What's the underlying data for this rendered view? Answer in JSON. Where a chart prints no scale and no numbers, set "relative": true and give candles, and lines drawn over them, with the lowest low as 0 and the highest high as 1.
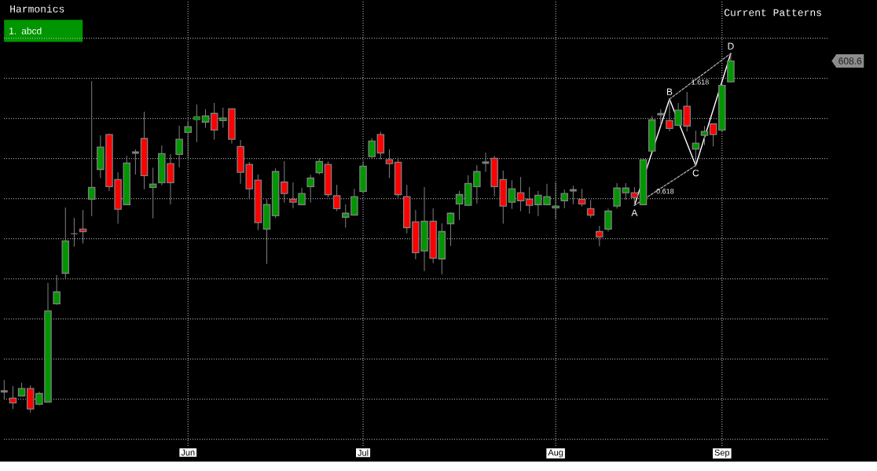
{
  "chart_data": {
    "type": "candlestick",
    "title": "Harmonics",
    "relative": true,
    "grid": true,
    "categories": [
      null,
      null,
      null,
      null,
      null,
      null,
      null,
      null,
      null,
      null,
      null,
      null,
      null,
      null,
      null,
      null,
      null,
      null,
      null,
      null,
      null,
      "Jun",
      null,
      null,
      null,
      null,
      null,
      null,
      null,
      null,
      null,
      null,
      null,
      null,
      null,
      null,
      null,
      null,
      null,
      null,
      null,
      "Jul",
      null,
      null,
      null,
      null,
      null,
      null,
      null,
      null,
      null,
      null,
      null,
      null,
      null,
      null,
      null,
      null,
      null,
      null,
      null,
      null,
      null,
      "Aug",
      null,
      null,
      null,
      null,
      null,
      null,
      null,
      null,
      null,
      null,
      null,
      null,
      null,
      null,
      null,
      null,
      null,
      null,
      "Sep",
      null
    ],
    "ohlc": [
      [
        0.059,
        0.091,
        0.037,
        0.059
      ],
      [
        0.04,
        0.074,
        0.01,
        0.027
      ],
      [
        0.046,
        0.083,
        0.046,
        0.067
      ],
      [
        0.067,
        0.076,
        0,
        0.01
      ],
      [
        0.023,
        0.058,
        0.02,
        0.053
      ],
      [
        0.029,
        0.361,
        0.029,
        0.283
      ],
      [
        0.303,
        0.383,
        0.3,
        0.336
      ],
      [
        0.388,
        0.571,
        0.372,
        0.478
      ],
      [
        0.5,
        0.542,
        0.462,
        0.496
      ],
      [
        0.511,
        0.564,
        0.471,
        0.504
      ],
      [
        0.594,
        0.923,
        0.547,
        0.627
      ],
      [
        0.677,
        0.772,
        0.653,
        0.739
      ],
      [
        0.774,
        0.777,
        0.617,
        0.629
      ],
      [
        0.649,
        0.669,
        0.526,
        0.566
      ],
      [
        0.579,
        0.715,
        0.579,
        0.695
      ],
      [
        0.724,
        0.733,
        0.663,
        0.724
      ],
      [
        0.763,
        0.838,
        0.622,
        0.66
      ],
      [
        0.627,
        0.682,
        0.541,
        0.636
      ],
      [
        0.64,
        0.744,
        0.633,
        0.721
      ],
      [
        0.693,
        0.72,
        0.58,
        0.64
      ],
      [
        0.719,
        0.799,
        0.683,
        0.761
      ],
      [
        0.78,
        0.812,
        0.709,
        0.796
      ],
      [
        0.818,
        0.858,
        0.753,
        0.822
      ],
      [
        0.809,
        0.845,
        0.793,
        0.826
      ],
      [
        0.833,
        0.862,
        0.76,
        0.787
      ],
      [
        0.813,
        0.849,
        0.793,
        0.82
      ],
      [
        0.846,
        0.846,
        0.749,
        0.761
      ],
      [
        0.741,
        0.759,
        0.637,
        0.669
      ],
      [
        0.691,
        0.698,
        0.594,
        0.623
      ],
      [
        0.647,
        0.663,
        0.508,
        0.529
      ],
      [
        0.511,
        0.594,
        0.414,
        0.579
      ],
      [
        0.548,
        0.68,
        0.541,
        0.671
      ],
      [
        0.642,
        0.7,
        0.585,
        0.61
      ],
      [
        0.594,
        0.641,
        0.569,
        0.586
      ],
      [
        0.579,
        0.626,
        0.579,
        0.61
      ],
      [
        0.629,
        0.662,
        0.585,
        0.653
      ],
      [
        0.668,
        0.708,
        0.663,
        0.699
      ],
      [
        0.691,
        0.699,
        0.599,
        0.607
      ],
      [
        0.604,
        0.634,
        0.561,
        0.568
      ],
      [
        0.544,
        0.58,
        0.515,
        0.555
      ],
      [
        0.55,
        0.623,
        0.55,
        0.601
      ],
      [
        0.616,
        0.699,
        0.612,
        0.686
      ],
      [
        0.713,
        0.764,
        0.707,
        0.756
      ],
      [
        0.774,
        0.782,
        0.705,
        0.723
      ],
      [
        0.704,
        0.733,
        0.653,
        0.693
      ],
      [
        0.697,
        0.71,
        0.598,
        0.607
      ],
      [
        0.601,
        0.634,
        0.499,
        0.515
      ],
      [
        0.531,
        0.564,
        0.427,
        0.445
      ],
      [
        0.45,
        0.628,
        0.394,
        0.533
      ],
      [
        0.533,
        0.569,
        0.416,
        0.43
      ],
      [
        0.428,
        0.527,
        0.385,
        0.504
      ],
      [
        0.526,
        0.558,
        0.464,
        0.555
      ],
      [
        0.581,
        0.617,
        0.536,
        0.607
      ],
      [
        0.577,
        0.661,
        0.577,
        0.638
      ],
      [
        0.629,
        0.689,
        0.582,
        0.671
      ],
      [
        0.696,
        0.724,
        0.67,
        0.696
      ],
      [
        0.708,
        0.715,
        0.602,
        0.629
      ],
      [
        0.649,
        0.674,
        0.526,
        0.575
      ],
      [
        0.586,
        0.647,
        0.567,
        0.623
      ],
      [
        0.612,
        0.656,
        0.561,
        0.59
      ],
      [
        0.594,
        0.628,
        0.554,
        0.577
      ],
      [
        0.579,
        0.617,
        0.547,
        0.605
      ],
      [
        0.579,
        0.637,
        0.579,
        0.601
      ],
      [
        0.57,
        0.641,
        0.54,
        0.575
      ],
      [
        0.59,
        0.621,
        0.569,
        0.61
      ],
      [
        0.619,
        0.632,
        0.58,
        0.619
      ],
      [
        0.594,
        0.623,
        0.574,
        0.581
      ],
      [
        0.568,
        0.592,
        0.542,
        0.55
      ],
      [
        0.504,
        0.52,
        0.463,
        0.489
      ],
      [
        0.511,
        0.568,
        0.504,
        0.561
      ],
      [
        0.575,
        0.639,
        0.568,
        0.625
      ],
      [
        0.612,
        0.639,
        0.592,
        0.625
      ],
      [
        0.612,
        0.628,
        0.577,
        0.599
      ],
      [
        0.579,
        0.704,
        0.579,
        0.704
      ],
      [
        0.728,
        0.826,
        0.728,
        0.815
      ],
      [
        0.831,
        0.845,
        0.799,
        0.831
      ],
      [
        0.813,
        0.873,
        0.783,
        0.791
      ],
      [
        0.8,
        0.862,
        0.8,
        0.842
      ],
      [
        0.853,
        0.893,
        0.783,
        0.798
      ],
      [
        0.734,
        0.785,
        0.688,
        0.75
      ],
      [
        0.772,
        0.798,
        0.745,
        0.783
      ],
      [
        0.804,
        0.804,
        0.741,
        0.774
      ],
      [
        0.787,
        0.911,
        0.781,
        0.911
      ],
      [
        0.921,
        1,
        0.921,
        0.979
      ]
    ],
    "colors": [
      "#808080",
      "#ff0000",
      "#009600",
      "#ff0000",
      "#009600",
      "#009600",
      "#009600",
      "#009600",
      "#ff0000",
      "#ff0000",
      "#009600",
      "#009600",
      "#ff0000",
      "#ff0000",
      "#009600",
      "#808080",
      "#ff0000",
      "#009600",
      "#009600",
      "#ff0000",
      "#009600",
      "#009600",
      "#009600",
      "#009600",
      "#ff0000",
      "#009600",
      "#ff0000",
      "#ff0000",
      "#ff0000",
      "#ff0000",
      "#009600",
      "#009600",
      "#ff0000",
      "#ff0000",
      "#009600",
      "#009600",
      "#009600",
      "#ff0000",
      "#ff0000",
      "#009600",
      "#009600",
      "#009600",
      "#009600",
      "#ff0000",
      "#ff0000",
      "#ff0000",
      "#ff0000",
      "#ff0000",
      "#009600",
      "#ff0000",
      "#009600",
      "#009600",
      "#009600",
      "#009600",
      "#009600",
      "#808080",
      "#ff0000",
      "#ff0000",
      "#009600",
      "#ff0000",
      "#ff0000",
      "#009600",
      "#009600",
      "#009600",
      "#009600",
      "#808080",
      "#ff0000",
      "#ff0000",
      "#ff0000",
      "#009600",
      "#009600",
      "#009600",
      "#ff0000",
      "#009600",
      "#009600",
      "#808080",
      "#ff0000",
      "#009600",
      "#ff0000",
      "#009600",
      "#009600",
      "#ff0000",
      "#009600",
      "#009600"
    ],
    "series": [
      {
        "type": "line",
        "color": "#ffffff",
        "line_style": "solid",
        "values": [
          null,
          null,
          null,
          null,
          null,
          null,
          null,
          null,
          null,
          null,
          null,
          null,
          null,
          null,
          null,
          null,
          null,
          null,
          null,
          null,
          null,
          null,
          null,
          null,
          null,
          null,
          null,
          null,
          null,
          null,
          null,
          null,
          null,
          null,
          null,
          null,
          null,
          null,
          null,
          null,
          null,
          null,
          null,
          null,
          null,
          null,
          null,
          null,
          null,
          null,
          null,
          null,
          null,
          null,
          null,
          null,
          null,
          null,
          null,
          null,
          null,
          null,
          null,
          null,
          null,
          null,
          null,
          null,
          null,
          null,
          null,
          null,
          0.577,
          null,
          null,
          null,
          0.873,
          null,
          null,
          0.688,
          null,
          null,
          null,
          1
        ]
      },
      {
        "type": "line",
        "name": "0.618",
        "color": "#a0a0a0",
        "line_style": "dashed",
        "values": [
          null,
          null,
          null,
          null,
          null,
          null,
          null,
          null,
          null,
          null,
          null,
          null,
          null,
          null,
          null,
          null,
          null,
          null,
          null,
          null,
          null,
          null,
          null,
          null,
          null,
          null,
          null,
          null,
          null,
          null,
          null,
          null,
          null,
          null,
          null,
          null,
          null,
          null,
          null,
          null,
          null,
          null,
          null,
          null,
          null,
          null,
          null,
          null,
          null,
          null,
          null,
          null,
          null,
          null,
          null,
          null,
          null,
          null,
          null,
          null,
          null,
          null,
          null,
          null,
          null,
          null,
          null,
          null,
          null,
          null,
          null,
          null,
          0.577,
          null,
          null,
          null,
          null,
          null,
          null,
          0.688,
          null,
          null,
          null,
          null
        ]
      },
      {
        "type": "line",
        "name": "1.618",
        "color": "#a0a0a0",
        "line_style": "dashed",
        "values": [
          null,
          null,
          null,
          null,
          null,
          null,
          null,
          null,
          null,
          null,
          null,
          null,
          null,
          null,
          null,
          null,
          null,
          null,
          null,
          null,
          null,
          null,
          null,
          null,
          null,
          null,
          null,
          null,
          null,
          null,
          null,
          null,
          null,
          null,
          null,
          null,
          null,
          null,
          null,
          null,
          null,
          null,
          null,
          null,
          null,
          null,
          null,
          null,
          null,
          null,
          null,
          null,
          null,
          null,
          null,
          null,
          null,
          null,
          null,
          null,
          null,
          null,
          null,
          null,
          null,
          null,
          null,
          null,
          null,
          null,
          null,
          null,
          null,
          null,
          null,
          null,
          0.873,
          null,
          null,
          null,
          null,
          null,
          null,
          1
        ]
      }
    ],
    "annotations": [
      "1. abcd",
      "Current Patterns",
      "A",
      "B",
      "C",
      "D",
      "608.6"
    ]
  }
}
